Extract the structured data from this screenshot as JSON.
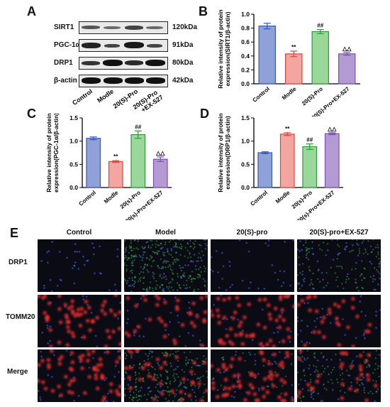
{
  "panel_A": {
    "letter": "A",
    "rows": [
      {
        "label": "SIRT1",
        "kda": "120kDa"
      },
      {
        "label": "PGC-1α",
        "kda": "91kDa"
      },
      {
        "label": "DRP1",
        "kda": "80kDa"
      },
      {
        "label": "β-actin",
        "kda": "42kDa"
      }
    ],
    "lanes": [
      "Control",
      "Modle",
      "20(S)-Pro",
      "20(S)-Pro\n+EX-527"
    ]
  },
  "chart_data": [
    {
      "panel": "B",
      "type": "bar",
      "ylabel": "Relative intensity of protein expression(SIRT1/β-actin)",
      "categories": [
        "Control",
        "Modle",
        "20(S)-Pro",
        "20(S)-Pro+EX-527"
      ],
      "values": [
        0.83,
        0.43,
        0.75,
        0.43
      ],
      "errors": [
        0.04,
        0.04,
        0.03,
        0.02
      ],
      "marks": [
        "",
        "**",
        "##",
        "△△"
      ],
      "ylim": [
        0,
        1.0
      ],
      "yticks": [
        "0.0",
        "0.2",
        "0.4",
        "0.6",
        "0.8",
        "1.0"
      ],
      "colors": [
        "#8ea2d9",
        "#f3a6a0",
        "#9ad79a",
        "#b49ad3"
      ],
      "edge_colors": [
        "#3a56b0",
        "#d9453a",
        "#2f9a38",
        "#7b4fb0"
      ]
    },
    {
      "panel": "C",
      "type": "bar",
      "ylabel": "Relative intensity of protein expression(PGC-1α/β-actin)",
      "categories": [
        "Control",
        "Modle",
        "20(s)-Pro",
        "20(s)-Pro+EX-527"
      ],
      "values": [
        1.06,
        0.56,
        1.14,
        0.61
      ],
      "errors": [
        0.03,
        0.02,
        0.08,
        0.05
      ],
      "marks": [
        "",
        "**",
        "##",
        "△△"
      ],
      "ylim": [
        0,
        1.5
      ],
      "yticks": [
        "0.0",
        "0.5",
        "1.0",
        "1.5"
      ],
      "colors": [
        "#8ea2d9",
        "#f3a6a0",
        "#9ad79a",
        "#b49ad3"
      ],
      "edge_colors": [
        "#3a56b0",
        "#d9453a",
        "#2f9a38",
        "#7b4fb0"
      ]
    },
    {
      "panel": "D",
      "type": "bar",
      "ylabel": "Relative intensity of protein expression(DRP1/β-actin)",
      "categories": [
        "Control",
        "Modle",
        "20(s)-Pro",
        "20(s)-Pro+EX-527"
      ],
      "values": [
        0.75,
        1.15,
        0.88,
        1.16
      ],
      "errors": [
        0.02,
        0.03,
        0.06,
        0.02
      ],
      "marks": [
        "",
        "**",
        "##",
        "△△"
      ],
      "ylim": [
        0,
        1.5
      ],
      "yticks": [
        "0.0",
        "0.5",
        "1.0",
        "1.5"
      ],
      "colors": [
        "#8ea2d9",
        "#f3a6a0",
        "#9ad79a",
        "#b49ad3"
      ],
      "edge_colors": [
        "#3a56b0",
        "#d9453a",
        "#2f9a38",
        "#7b4fb0"
      ]
    }
  ],
  "panel_E": {
    "letter": "E",
    "columns": [
      "Control",
      "Model",
      "20(S)-pro",
      "20(S)-pro+EX-527"
    ],
    "rows": [
      "DRP1",
      "TOMM20",
      "Merge"
    ]
  }
}
